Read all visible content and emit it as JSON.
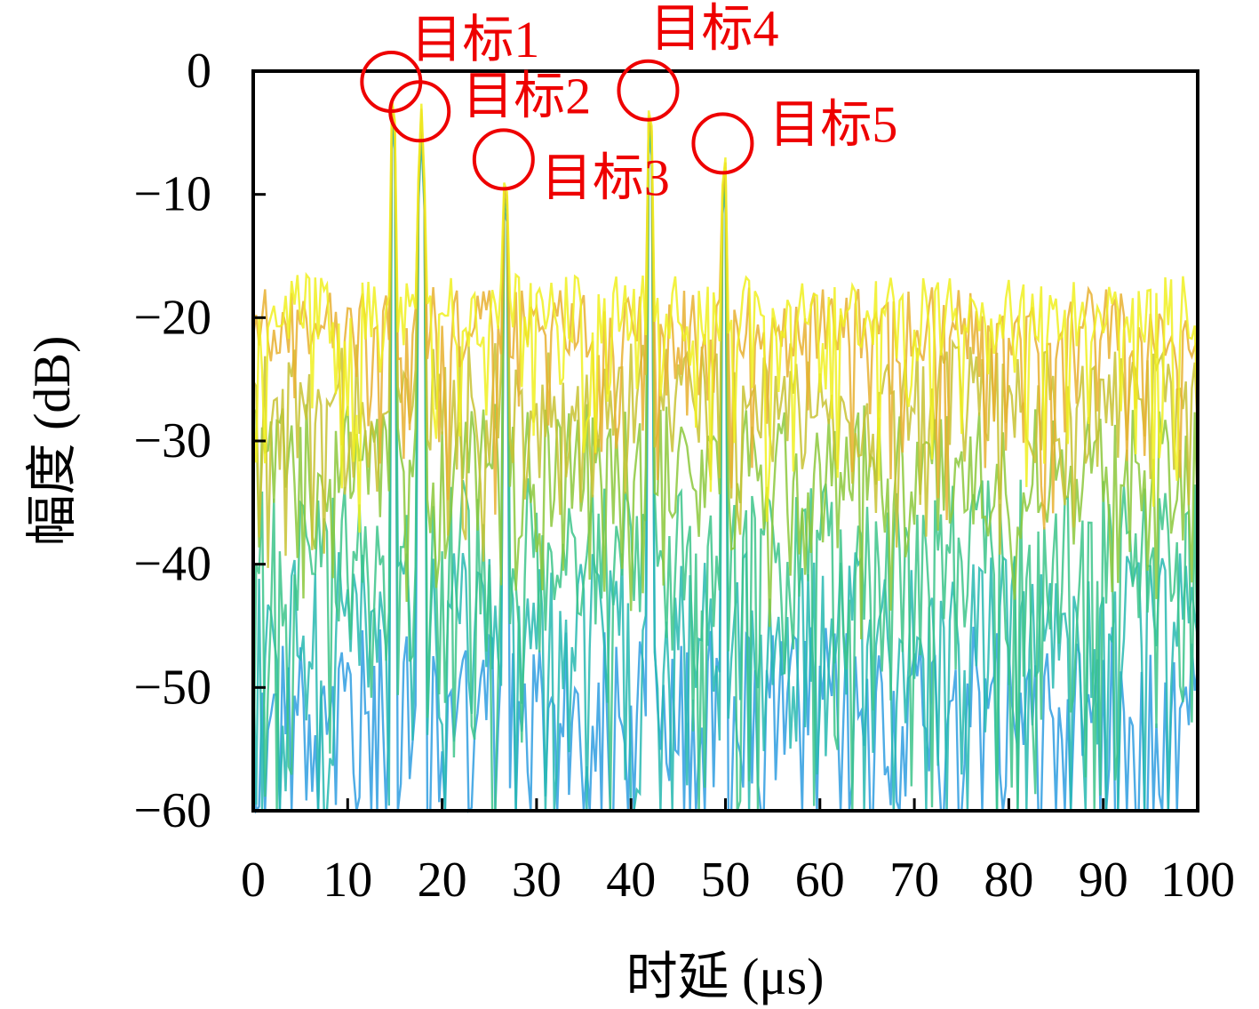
{
  "chart_data": {
    "type": "line",
    "title": "",
    "xlabel": "时延 (μs)",
    "ylabel": "幅度 (dB)",
    "xlim": [
      0,
      100
    ],
    "ylim": [
      -60,
      0
    ],
    "xticks": [
      0,
      10,
      20,
      30,
      40,
      50,
      60,
      70,
      80,
      90,
      100
    ],
    "xtick_labels": [
      "0",
      "10",
      "20",
      "30",
      "40",
      "50",
      "60",
      "70",
      "80",
      "90",
      "100"
    ],
    "yticks": [
      0,
      -10,
      -20,
      -30,
      -40,
      -50,
      -60
    ],
    "ytick_labels": [
      "0",
      "−10",
      "−20",
      "−30",
      "−40",
      "−50",
      "−60"
    ],
    "grid": false,
    "legend": "none",
    "series_description_colors": [
      "#2f9ee0",
      "#27b8b0",
      "#3cc48a",
      "#8cc83c",
      "#c8c232",
      "#e8b030",
      "#f0f020"
    ],
    "series_noise_floor_db": [
      -48,
      -42,
      -36,
      -30,
      -25,
      -20,
      -19
    ],
    "targets": [
      {
        "label": "目标1",
        "x": 14.8,
        "peak_db": 0.0
      },
      {
        "label": "目标2",
        "x": 17.8,
        "peak_db": -2.4
      },
      {
        "label": "目标3",
        "x": 26.7,
        "peak_db": -6.3
      },
      {
        "label": "目标4",
        "x": 42.0,
        "peak_db": -0.7
      },
      {
        "label": "目标5",
        "x": 49.9,
        "peak_db": -5.0
      }
    ],
    "annotation_color": "#ee0000"
  }
}
